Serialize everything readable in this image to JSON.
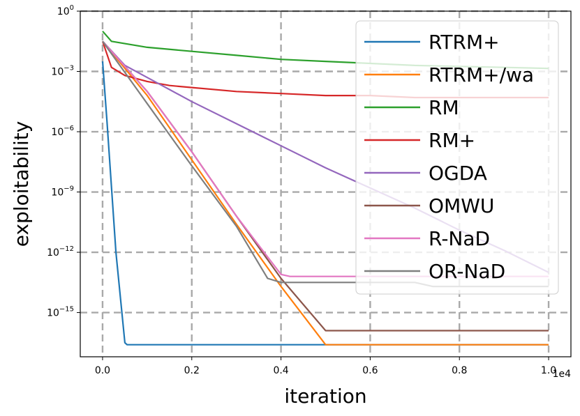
{
  "chart_data": {
    "type": "line",
    "title": "",
    "xlabel": "iteration",
    "ylabel": "exploitability",
    "x_multiplier_label": "1e4",
    "xlim": [
      -0.05,
      1.05
    ],
    "ylim_log10": [
      -17.2,
      0.0
    ],
    "grid": true,
    "legend_location": "top-right",
    "xticks": [
      0.0,
      0.2,
      0.4,
      0.6,
      0.8,
      1.0
    ],
    "xtick_labels": [
      "0.0",
      "0.2",
      "0.4",
      "0.6",
      "0.8",
      "1.0"
    ],
    "yticks_log10": [
      0,
      -3,
      -6,
      -9,
      -12,
      -15
    ],
    "ytick_base": "10",
    "ytick_exponents": [
      "0",
      "−3",
      "−6",
      "−9",
      "−12",
      "−15"
    ],
    "series": [
      {
        "name": "RTRM+",
        "color": "#1f77b4",
        "x": [
          0.0,
          0.01,
          0.03,
          0.05,
          0.055,
          1.0
        ],
        "log10_y": [
          -2.5,
          -5.5,
          -12.0,
          -16.5,
          -16.6,
          -16.6
        ]
      },
      {
        "name": "RTRM+/wa",
        "color": "#ff7f0e",
        "x": [
          0.0,
          0.1,
          0.2,
          0.3,
          0.4,
          0.5,
          0.51,
          1.0
        ],
        "log10_y": [
          -1.5,
          -4.2,
          -7.4,
          -10.6,
          -13.7,
          -16.6,
          -16.6,
          -16.6
        ]
      },
      {
        "name": "RM",
        "color": "#2ca02c",
        "x": [
          0.0,
          0.02,
          0.1,
          0.2,
          0.3,
          0.4,
          0.5,
          0.6,
          0.7,
          0.8,
          0.9,
          1.0
        ],
        "log10_y": [
          -1.0,
          -1.5,
          -1.8,
          -2.0,
          -2.2,
          -2.4,
          -2.5,
          -2.6,
          -2.7,
          -2.75,
          -2.8,
          -2.85
        ]
      },
      {
        "name": "RM+",
        "color": "#d62728",
        "x": [
          0.0,
          0.02,
          0.05,
          0.1,
          0.15,
          0.2,
          0.3,
          0.4,
          0.5,
          0.6,
          0.7,
          0.8,
          0.9,
          1.0
        ],
        "log10_y": [
          -1.5,
          -2.8,
          -3.2,
          -3.5,
          -3.7,
          -3.8,
          -4.0,
          -4.1,
          -4.2,
          -4.2,
          -4.3,
          -4.3,
          -4.3,
          -4.3
        ]
      },
      {
        "name": "OGDA",
        "color": "#9467bd",
        "x": [
          0.0,
          0.05,
          0.1,
          0.2,
          0.3,
          0.4,
          0.5,
          0.6,
          0.7,
          0.8,
          0.9,
          1.0
        ],
        "log10_y": [
          -1.5,
          -2.7,
          -3.3,
          -4.5,
          -5.6,
          -6.7,
          -7.8,
          -8.8,
          -9.8,
          -10.9,
          -11.9,
          -13.0
        ]
      },
      {
        "name": "OMWU",
        "color": "#8c564b",
        "x": [
          0.0,
          0.1,
          0.2,
          0.3,
          0.4,
          0.5,
          0.55,
          1.0
        ],
        "log10_y": [
          -1.5,
          -4.0,
          -7.0,
          -10.2,
          -13.3,
          -15.9,
          -15.9,
          -15.9
        ]
      },
      {
        "name": "R-NaD",
        "color": "#e377c2",
        "x": [
          0.0,
          0.1,
          0.2,
          0.3,
          0.4,
          0.42,
          1.0
        ],
        "log10_y": [
          -1.5,
          -4.0,
          -7.0,
          -10.2,
          -13.1,
          -13.2,
          -13.2
        ]
      },
      {
        "name": "OR-NaD",
        "color": "#7f7f7f",
        "x": [
          0.0,
          0.1,
          0.2,
          0.3,
          0.37,
          0.4,
          0.7,
          0.74,
          1.0
        ],
        "log10_y": [
          -1.5,
          -4.6,
          -7.7,
          -10.7,
          -13.3,
          -13.5,
          -13.5,
          -13.7,
          -13.7
        ]
      }
    ]
  }
}
